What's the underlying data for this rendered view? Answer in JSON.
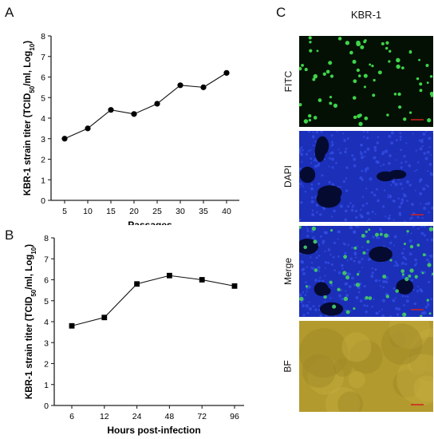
{
  "panels": {
    "a_letter": "A",
    "b_letter": "B",
    "c_letter": "C"
  },
  "chart_data": [
    {
      "type": "line",
      "marker": "circle",
      "x": [
        5,
        10,
        15,
        20,
        25,
        30,
        35,
        40
      ],
      "y": [
        3.0,
        3.5,
        4.4,
        4.2,
        4.7,
        5.6,
        5.5,
        6.2
      ],
      "xlabel": "Passages",
      "ylabel": "KBR-1 strain titer (TCID50/ml, Log10)",
      "ylim": [
        0,
        8
      ],
      "yticks": [
        "0",
        "1",
        "2",
        "3",
        "4",
        "5",
        "6",
        "7",
        "8"
      ],
      "xticks": [
        "5",
        "10",
        "15",
        "20",
        "25",
        "30",
        "35",
        "40"
      ],
      "grid": false
    },
    {
      "type": "line",
      "marker": "square",
      "categories": [
        "6",
        "12",
        "24",
        "48",
        "72",
        "96"
      ],
      "y": [
        3.8,
        4.2,
        5.8,
        6.2,
        6.0,
        5.7
      ],
      "xlabel": "Hours post-infection",
      "ylabel": "KBR-1 strain titer (TCID50/ml, Log10)",
      "ylim": [
        0,
        8
      ],
      "yticks": [
        "0",
        "1",
        "2",
        "3",
        "4",
        "5",
        "6",
        "7",
        "8"
      ],
      "grid": false
    }
  ],
  "microscopy": {
    "title": "KBR-1",
    "channels": [
      {
        "label": "FITC",
        "bg": "#041004",
        "dot": "#3fd44a",
        "count": 75,
        "holes": 0
      },
      {
        "label": "DAPI",
        "bg": "#1b2fb8",
        "dot": "#2f47e0",
        "count": 0,
        "holes": 7
      },
      {
        "label": "Merge",
        "bg": "#1b2fb8",
        "dot": "#3fbf6a",
        "count": 55,
        "holes": 6
      },
      {
        "label": "BF",
        "bg": "#b39a2e",
        "dot": "#cbb24a",
        "count": 0,
        "holes": 0
      }
    ],
    "scale_bar_color": "#d02020"
  }
}
